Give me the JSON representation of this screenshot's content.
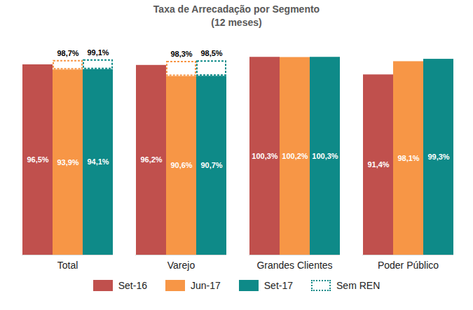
{
  "chart_data": {
    "type": "bar",
    "title": "Taxa de Arrecadação por Segmento",
    "subtitle": "(12 meses)",
    "categories": [
      "Total",
      "Varejo",
      "Grandes Clientes",
      "Poder Público"
    ],
    "series": [
      {
        "name": "Set-16",
        "color": "#c0504d",
        "values": [
          96.5,
          96.2,
          100.3,
          91.4
        ],
        "value_labels": [
          "96,5%",
          "96,2%",
          "100,3%",
          "91,4%"
        ]
      },
      {
        "name": "Jun-17",
        "color": "#f79646",
        "values": [
          93.9,
          90.6,
          100.2,
          98.1
        ],
        "value_labels": [
          "93,9%",
          "90,6%",
          "100,2%",
          "98,1%"
        ]
      },
      {
        "name": "Set-17",
        "color": "#0e8a88",
        "values": [
          94.1,
          90.7,
          100.3,
          99.3
        ],
        "value_labels": [
          "94,1%",
          "90,7%",
          "100,3%",
          "99,3%"
        ]
      }
    ],
    "sem_ren": {
      "name": "Sem REN",
      "color": "#0e8a88",
      "line_style": "dotted",
      "series": [
        {
          "name": "Jun-17",
          "values": [
            98.7,
            98.3,
            null,
            null
          ],
          "value_labels": [
            "98,7%",
            "98,3%",
            null,
            null
          ]
        },
        {
          "name": "Set-17",
          "values": [
            99.1,
            98.5,
            null,
            null
          ],
          "value_labels": [
            "99,1%",
            "98,5%",
            null,
            null
          ]
        }
      ]
    },
    "ylim": [
      0,
      105
    ],
    "yticks": [],
    "tick_labels": "x",
    "data_labels": true,
    "legend": "bottom"
  }
}
